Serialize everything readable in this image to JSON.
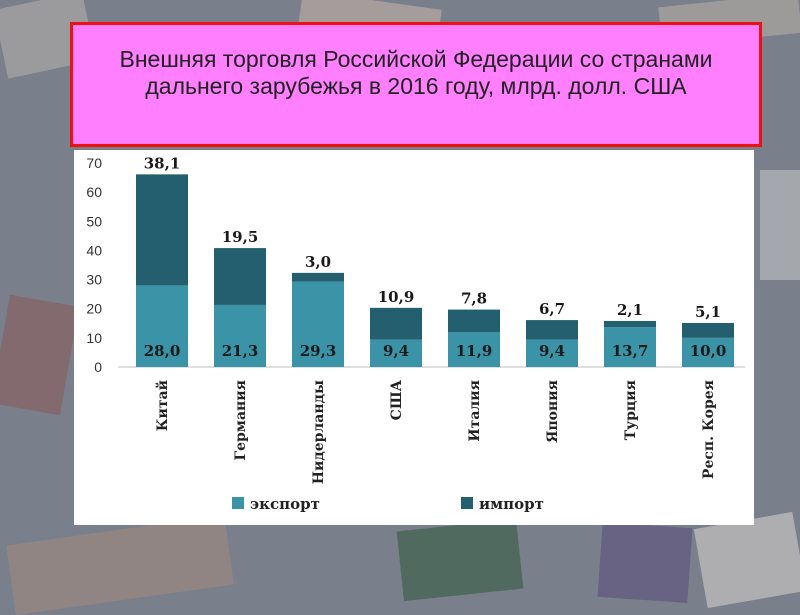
{
  "title": "Внешняя торговля Российской Федерации со странами дальнего зарубежья в 2016 году, млрд. долл. США",
  "colors": {
    "export": "#3a93a6",
    "import": "#235f6e",
    "title_bg": "#ff7fff",
    "title_border": "#ee1111"
  },
  "chart_data": {
    "type": "bar",
    "stacked": true,
    "categories": [
      "Китай",
      "Германия",
      "Нидерланды",
      "США",
      "Италия",
      "Япония",
      "Турция",
      "Респ. Корея"
    ],
    "series": [
      {
        "name": "экспорт",
        "values": [
          28.0,
          21.3,
          29.3,
          9.4,
          11.9,
          9.4,
          13.7,
          10.0
        ],
        "labels": [
          "28,0",
          "21,3",
          "29,3",
          "9,4",
          "11,9",
          "9,4",
          "13,7",
          "10,0"
        ]
      },
      {
        "name": "импорт",
        "values": [
          38.1,
          19.5,
          3.0,
          10.9,
          7.8,
          6.7,
          2.1,
          5.1
        ],
        "labels": [
          "38,1",
          "19,5",
          "3,0",
          "10,9",
          "7,8",
          "6,7",
          "2,1",
          "5,1"
        ]
      }
    ],
    "yticks": [
      "0",
      "10",
      "20",
      "30",
      "40",
      "50",
      "60",
      "70"
    ],
    "ylim": [
      0,
      70
    ],
    "legend_position": "bottom"
  }
}
